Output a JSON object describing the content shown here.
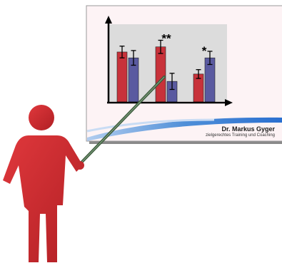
{
  "slide": {
    "author": "Dr. Markus Gyger",
    "tagline": "zielgerechtes Training und Coaching"
  },
  "colors": {
    "bar_red": "#c8323a",
    "bar_blue": "#5a5aa0",
    "figure_red": "#d6262c",
    "plot_bg": "#dcdcdc",
    "swoosh": "#4f8fd8",
    "pointer": "#3c5a3c"
  },
  "chart_data": {
    "type": "bar",
    "categories": [
      "",
      "",
      ""
    ],
    "series": [
      {
        "values": [
          68,
          75,
          38
        ],
        "errors": [
          8,
          9,
          6
        ]
      },
      {
        "values": [
          60,
          28,
          60
        ],
        "errors": [
          10,
          11,
          9
        ]
      }
    ],
    "annotations": [
      "",
      "**",
      "*"
    ],
    "ylim": [
      0,
      100
    ],
    "grid": false
  }
}
